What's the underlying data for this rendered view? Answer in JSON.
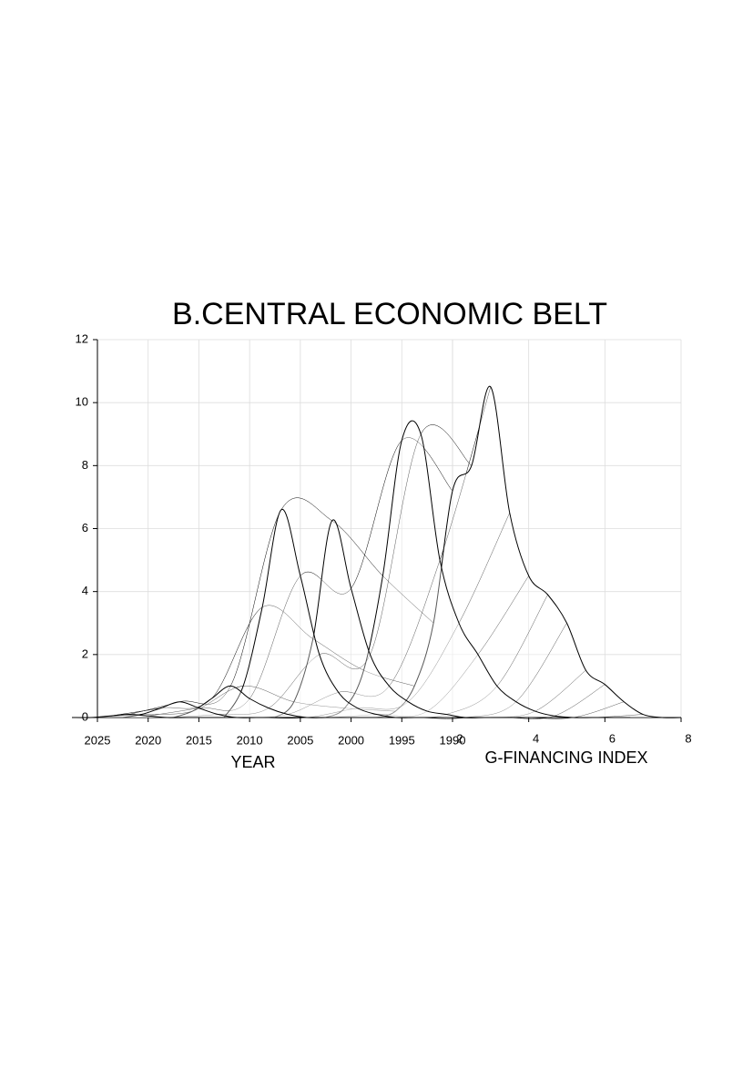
{
  "chart_data": {
    "type": "surface",
    "title": "B.CENTRAL ECONOMIC BELT",
    "year_label": "YEAR",
    "index_label": "G-FINANCING INDEX",
    "year_lim": [
      2025,
      1990
    ],
    "year_ticks": [
      2025,
      2020,
      2015,
      2010,
      2005,
      2000,
      1995,
      1990
    ],
    "index_lim": [
      2,
      8
    ],
    "index_ticks": [
      2,
      4,
      6,
      8
    ],
    "zlim": [
      0,
      12
    ],
    "zticks": [
      0,
      2,
      4,
      6,
      8,
      10,
      12
    ],
    "grid": true,
    "color": "#000000",
    "years": [
      1990,
      1995,
      2000,
      2005,
      2010,
      2015,
      2020
    ],
    "index": [
      0,
      0.5,
      1,
      1.5,
      2,
      2.5,
      3,
      3.5,
      4,
      4.5,
      5,
      5.5,
      6,
      6.5,
      7,
      7.5,
      8
    ],
    "z": [
      [
        0,
        0.2,
        1,
        3,
        7.2,
        8,
        10.5,
        6.5,
        4.5,
        3.9,
        3,
        1.5,
        1.05,
        0.5,
        0.1,
        0,
        0
      ],
      [
        0,
        0.3,
        1.5,
        4.5,
        8.8,
        9,
        5,
        3,
        2,
        1,
        0.5,
        0.2,
        0.05,
        0,
        0,
        0,
        0
      ],
      [
        0,
        0.5,
        2.5,
        6.25,
        4.1,
        2,
        1,
        0.5,
        0.2,
        0.1,
        0,
        0,
        0,
        0,
        0,
        0,
        0
      ],
      [
        0,
        1,
        3.5,
        6.6,
        4.5,
        2,
        0.8,
        0.3,
        0.1,
        0,
        0,
        0,
        0,
        0,
        0,
        0,
        0
      ],
      [
        0,
        0.2,
        0.6,
        1,
        0.6,
        0.3,
        0.1,
        0,
        0,
        0,
        0,
        0,
        0,
        0,
        0,
        0,
        0
      ],
      [
        0,
        0.1,
        0.3,
        0.5,
        0.3,
        0.1,
        0,
        0,
        0,
        0,
        0,
        0,
        0,
        0,
        0,
        0,
        0
      ],
      [
        0,
        0,
        0.05,
        0.1,
        0.05,
        0,
        0,
        0,
        0,
        0,
        0,
        0,
        0,
        0,
        0,
        0,
        0
      ]
    ]
  }
}
